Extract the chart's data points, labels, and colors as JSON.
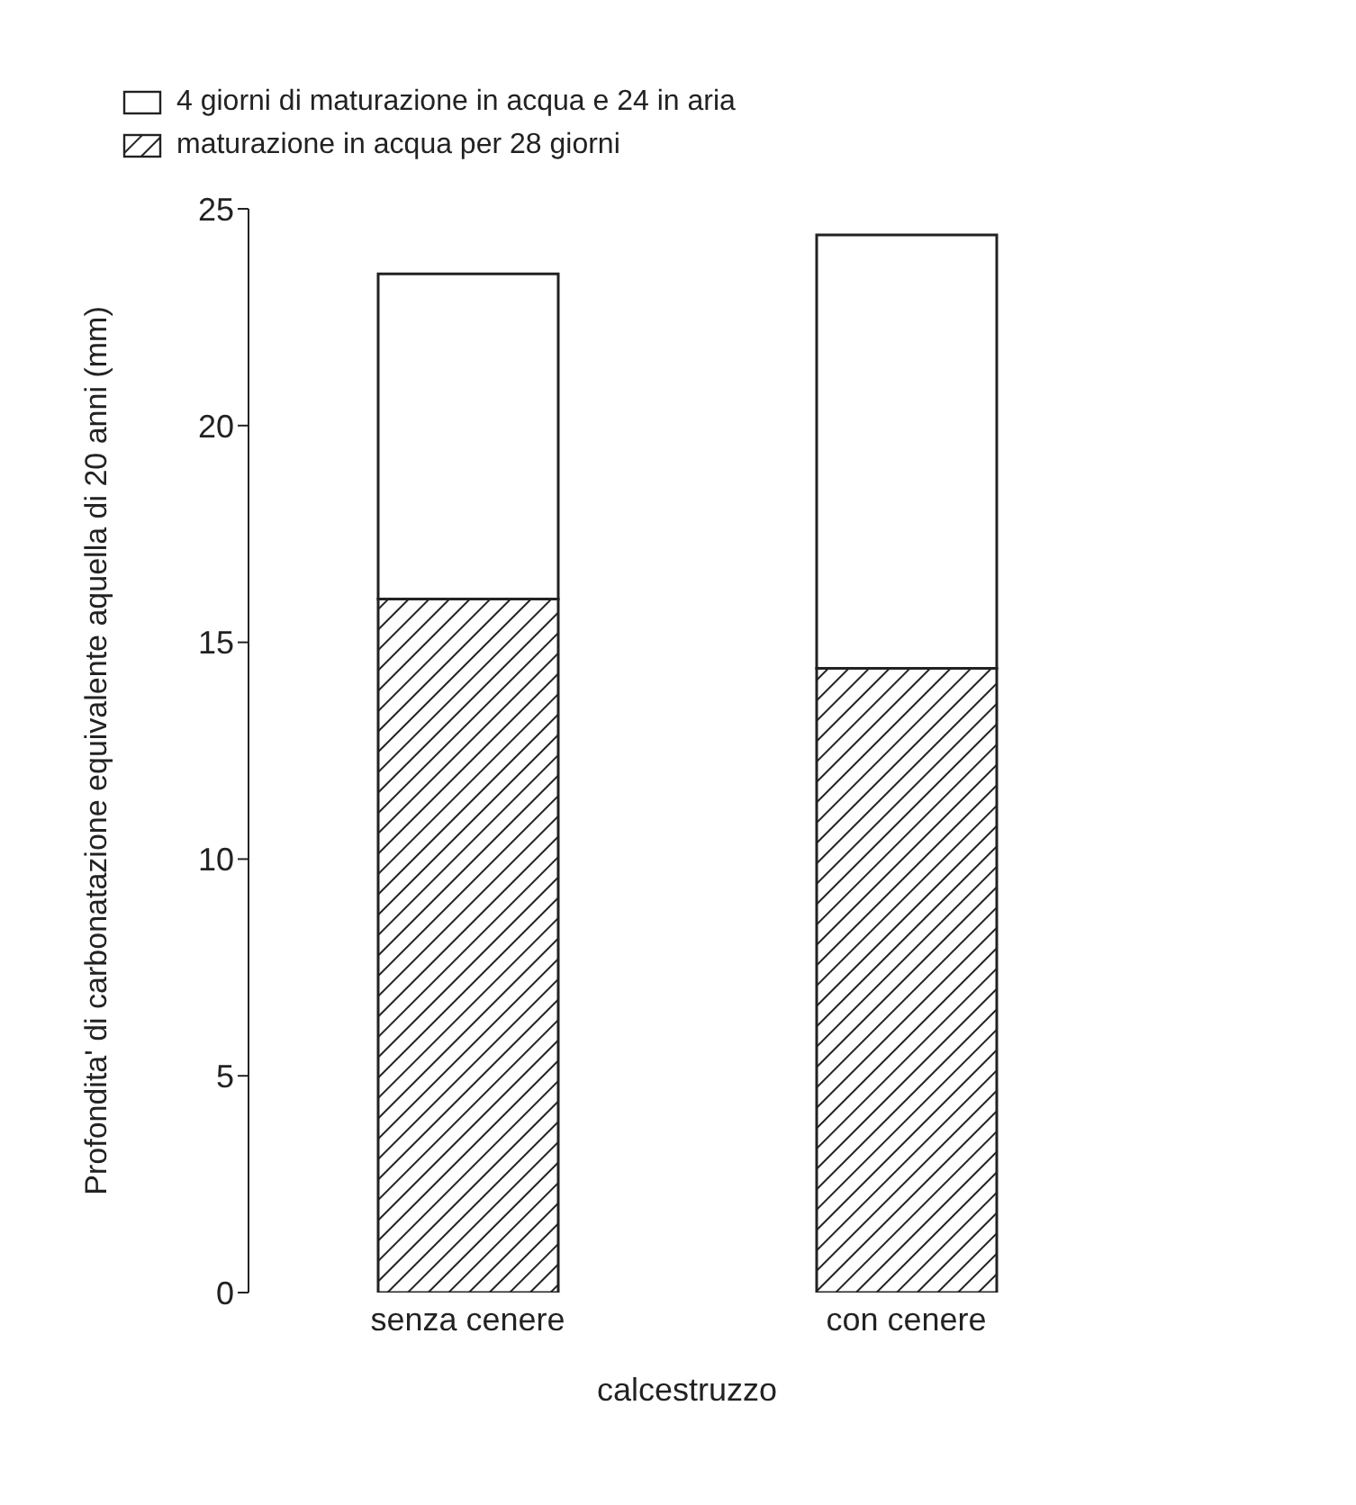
{
  "chart_data": {
    "type": "bar",
    "stacked": true,
    "xlabel": "calcestruzzo",
    "ylabel": "Profondita' di carbonatazione equivalente aquella di 20 anni (mm)",
    "categories": [
      "senza cenere",
      "con cenere"
    ],
    "series": [
      {
        "name": "maturazione in acqua per 28 giorni",
        "color": "#222222",
        "values": [
          16,
          14.4
        ]
      },
      {
        "name": "4 giorni di maturazione in acqua e 24 in aria",
        "color": "#ffffff",
        "values": [
          7.5,
          10.0
        ]
      }
    ],
    "ylim": [
      0,
      25
    ],
    "yticks": [
      0,
      5,
      10,
      15,
      20,
      25
    ],
    "grid": false,
    "legend": "top left"
  }
}
